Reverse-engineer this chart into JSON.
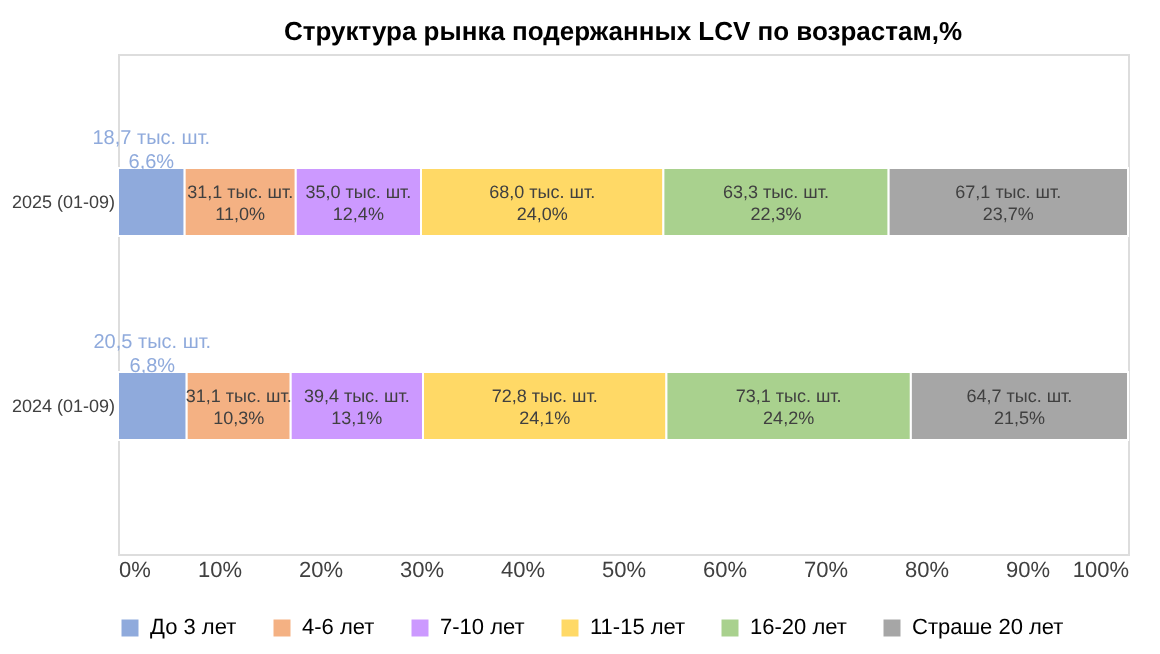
{
  "chart_data": {
    "type": "bar",
    "title": "Структура рынка подержанных LCV по возрастам,%",
    "orientation": "horizontal",
    "stacked": true,
    "categories": [
      "2025 (01-09)",
      "2024 (01-09)"
    ],
    "series": [
      {
        "name": "До 3 лет",
        "color": "#8faadc",
        "values": [
          6.6,
          6.8
        ],
        "value_labels": [
          "18,7 тыс. шт.\n6,6%",
          "20,5 тыс. шт.\n6,8%"
        ]
      },
      {
        "name": "4-6 лет",
        "color": "#f4b183",
        "values": [
          11.0,
          10.3
        ],
        "value_labels": [
          "31,1 тыс. шт.\n11,0%",
          "31,1 тыс. шт.\n10,3%"
        ]
      },
      {
        "name": "7-10 лет",
        "color": "#cc99ff",
        "values": [
          12.4,
          13.1
        ],
        "value_labels": [
          "35,0 тыс. шт.\n12,4%",
          "39,4 тыс. шт.\n13,1%"
        ]
      },
      {
        "name": "11-15 лет",
        "color": "#ffd966",
        "values": [
          24.0,
          24.1
        ],
        "value_labels": [
          "68,0 тыс. шт.\n24,0%",
          "72,8 тыс. шт.\n24,1%"
        ]
      },
      {
        "name": "16-20 лет",
        "color": "#a9d18e",
        "values": [
          22.3,
          24.2
        ],
        "value_labels": [
          "63,3 тыс. шт.\n22,3%",
          "73,1 тыс. шт.\n24,2%"
        ]
      },
      {
        "name": "Страше 20 лет",
        "color": "#a6a6a6",
        "values": [
          23.7,
          21.5
        ],
        "value_labels": [
          "67,1 тыс. шт.\n23,7%",
          "64,7 тыс. шт.\n21,5%"
        ]
      }
    ],
    "xlim": [
      0,
      100
    ],
    "xticks": [
      {
        "value": 0,
        "label": "0%"
      },
      {
        "value": 10,
        "label": "10%"
      },
      {
        "value": 20,
        "label": "20%"
      },
      {
        "value": 30,
        "label": "30%"
      },
      {
        "value": 40,
        "label": "40%"
      },
      {
        "value": 50,
        "label": "50%"
      },
      {
        "value": 60,
        "label": "60%"
      },
      {
        "value": 70,
        "label": "70%"
      },
      {
        "value": 80,
        "label": "80%"
      },
      {
        "value": 90,
        "label": "90%"
      },
      {
        "value": 100,
        "label": "100%"
      }
    ],
    "grid": false,
    "legend": "bottom"
  }
}
